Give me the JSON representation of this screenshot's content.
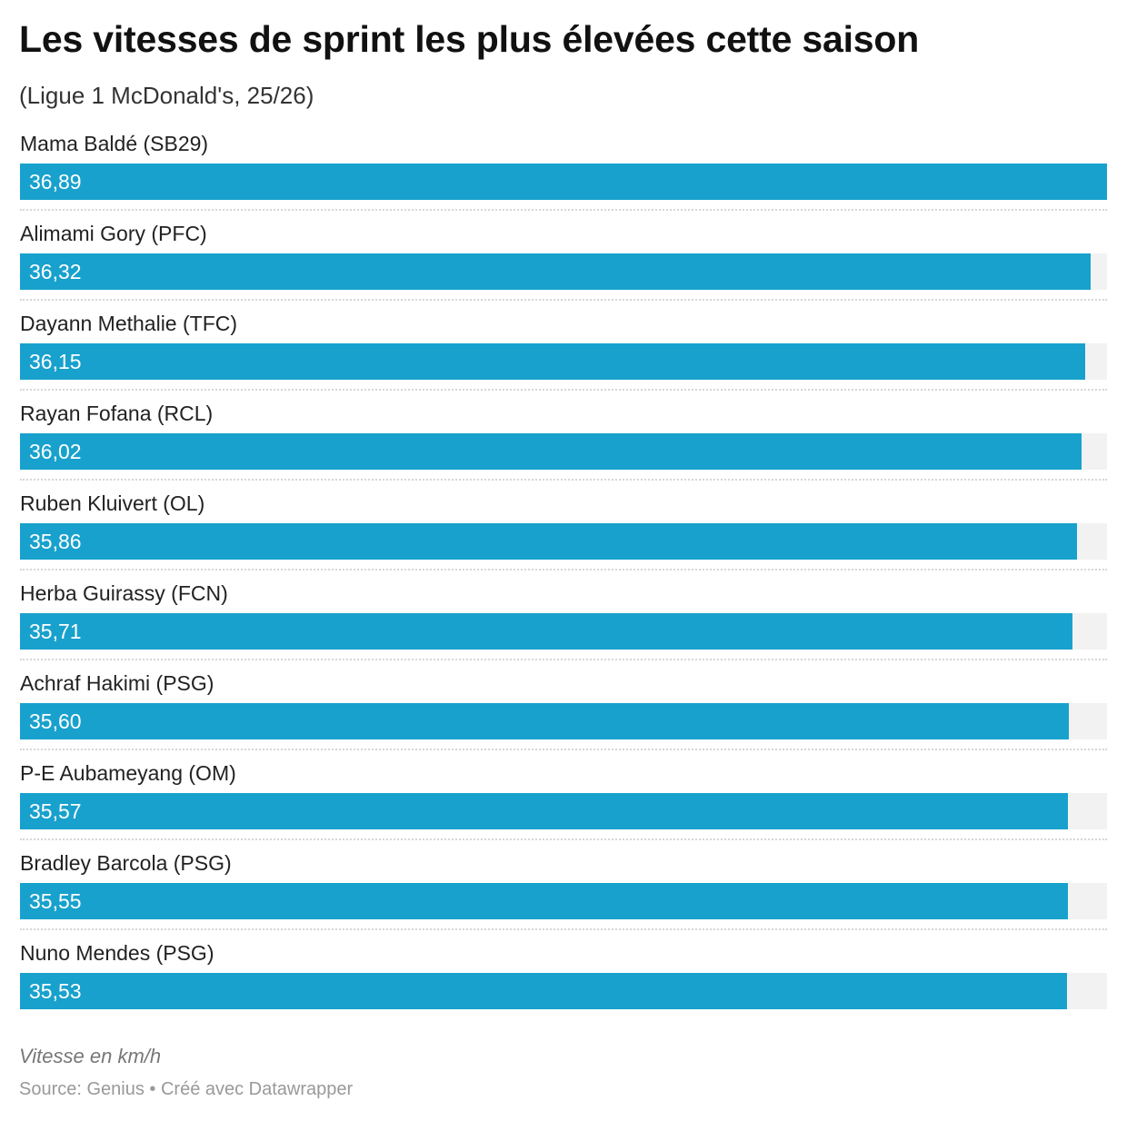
{
  "title": "Les vitesses de sprint les plus élevées cette saison",
  "subtitle": "(Ligue 1 McDonald's, 25/26)",
  "notes": "Vitesse en km/h",
  "source": "Source: Genius • Créé avec Datawrapper",
  "chart_data": {
    "type": "bar",
    "orientation": "horizontal",
    "title": "Les vitesses de sprint les plus élevées cette saison",
    "subtitle": "(Ligue 1 McDonald's, 25/26)",
    "categories": [
      "Mama Baldé (SB29)",
      "Alimami Gory (PFC)",
      "Dayann Methalie (TFC)",
      "Rayan Fofana (RCL)",
      "Ruben Kluivert (OL)",
      "Herba Guirassy (FCN)",
      "Achraf Hakimi (PSG)",
      "P-E Aubameyang (OM)",
      "Bradley Barcola (PSG)",
      "Nuno Mendes (PSG)"
    ],
    "values": [
      36.89,
      36.32,
      36.15,
      36.02,
      35.86,
      35.71,
      35.6,
      35.57,
      35.55,
      35.53
    ],
    "value_labels": [
      "36,89",
      "36,32",
      "36,15",
      "36,02",
      "35,86",
      "35,71",
      "35,60",
      "35,57",
      "35,55",
      "35,53"
    ],
    "xlim": [
      0,
      36.89
    ],
    "unit": "Vitesse en km/h",
    "grid": false,
    "bar_color": "#18a1cd",
    "track_color": "#f2f2f2"
  }
}
